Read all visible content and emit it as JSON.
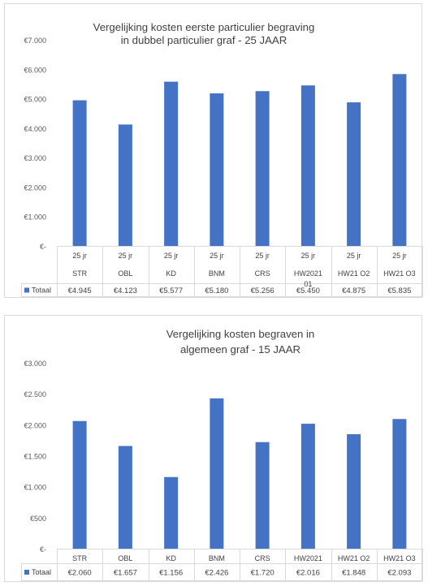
{
  "chart_data": [
    {
      "type": "bar",
      "title_lines": [
        "Vergelijking kosten eerste particulier begraving",
        "in dubbel particulier graf - 25 JAAR"
      ],
      "xlabel": "",
      "ylabel": "",
      "ylim": [
        0,
        7000
      ],
      "y_ticks": [
        "€-",
        "€1.000",
        "€2.000",
        "€3.000",
        "€4.000",
        "€5.000",
        "€6.000",
        "€7.000"
      ],
      "grid": false,
      "legend": "table-bottom",
      "color": "#4472C4",
      "categories": [
        [
          "25 jr",
          "STR"
        ],
        [
          "25 jr",
          "OBL"
        ],
        [
          "25 jr",
          "KD"
        ],
        [
          "25 jr",
          "BNM"
        ],
        [
          "25 jr",
          "CRS"
        ],
        [
          "25 jr",
          "HW2021",
          "01"
        ],
        [
          "25 jr",
          "HW21 O2"
        ],
        [
          "25 jr",
          "HW21 O3"
        ]
      ],
      "series": [
        {
          "name": "Totaal",
          "values": [
            4945,
            4123,
            5577,
            5180,
            5256,
            5450,
            4875,
            5835
          ],
          "value_labels": [
            "€4.945",
            "€4.123",
            "€5.577",
            "€5.180",
            "€5.256",
            "€5.450",
            "€4.875",
            "€5.835"
          ]
        }
      ]
    },
    {
      "type": "bar",
      "title_lines": [
        "Vergelijking kosten begraven in",
        "algemeen graf - 15 JAAR"
      ],
      "xlabel": "",
      "ylabel": "",
      "ylim": [
        0,
        3000
      ],
      "y_ticks": [
        "€-",
        "€500",
        "€1.000",
        "€1.500",
        "€2.000",
        "€2.500",
        "€3.000"
      ],
      "grid": false,
      "legend": "table-bottom",
      "color": "#4472C4",
      "categories": [
        [
          "STR"
        ],
        [
          "OBL"
        ],
        [
          "KD"
        ],
        [
          "BNM"
        ],
        [
          "CRS"
        ],
        [
          "HW2021"
        ],
        [
          "HW21 O2"
        ],
        [
          "HW21 O3"
        ]
      ],
      "series": [
        {
          "name": "Totaal",
          "values": [
            2060,
            1657,
            1156,
            2426,
            1720,
            2016,
            1848,
            2093
          ],
          "value_labels": [
            "€2.060",
            "€1.657",
            "€1.156",
            "€2.426",
            "€1.720",
            "€2.016",
            "€1.848",
            "€2.093"
          ]
        }
      ]
    }
  ]
}
